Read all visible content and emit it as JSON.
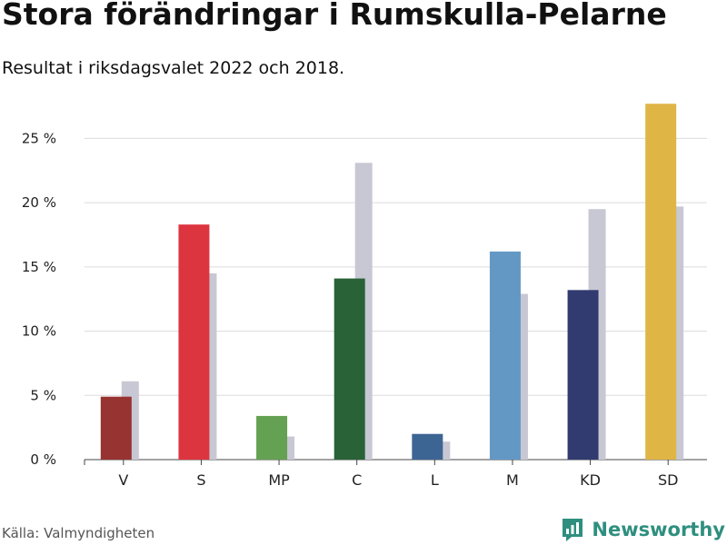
{
  "header": {
    "title": "Stora förändringar i Rumskulla-Pelarne",
    "subtitle": "Resultat i riksdagsvalet 2022 och 2018."
  },
  "footer": {
    "source": "Källa: Valmyndigheten",
    "brand": "Newsworthy",
    "brand_color": "#2f8f7f",
    "brand_icon": "bar-chart-logo-icon"
  },
  "chart_data": {
    "type": "bar",
    "categories": [
      "V",
      "S",
      "MP",
      "C",
      "L",
      "M",
      "KD",
      "SD"
    ],
    "series": [
      {
        "values": [
          4.9,
          18.3,
          3.4,
          14.1,
          2.0,
          16.2,
          13.2,
          27.7
        ],
        "colors": [
          "#973330",
          "#dd3540",
          "#64a152",
          "#296237",
          "#3d6594",
          "#6398c5",
          "#313b70",
          "#dfb545"
        ]
      },
      {
        "values": [
          6.1,
          14.5,
          1.8,
          23.1,
          1.4,
          12.9,
          19.5,
          19.7
        ],
        "color": "#c8c8d4"
      }
    ],
    "yticks": [
      0,
      5,
      10,
      15,
      20,
      25
    ],
    "ytick_labels": [
      "0 %",
      "5 %",
      "10 %",
      "15 %",
      "20 %",
      "25 %"
    ],
    "ylim": [
      0,
      28
    ],
    "grid": true
  }
}
